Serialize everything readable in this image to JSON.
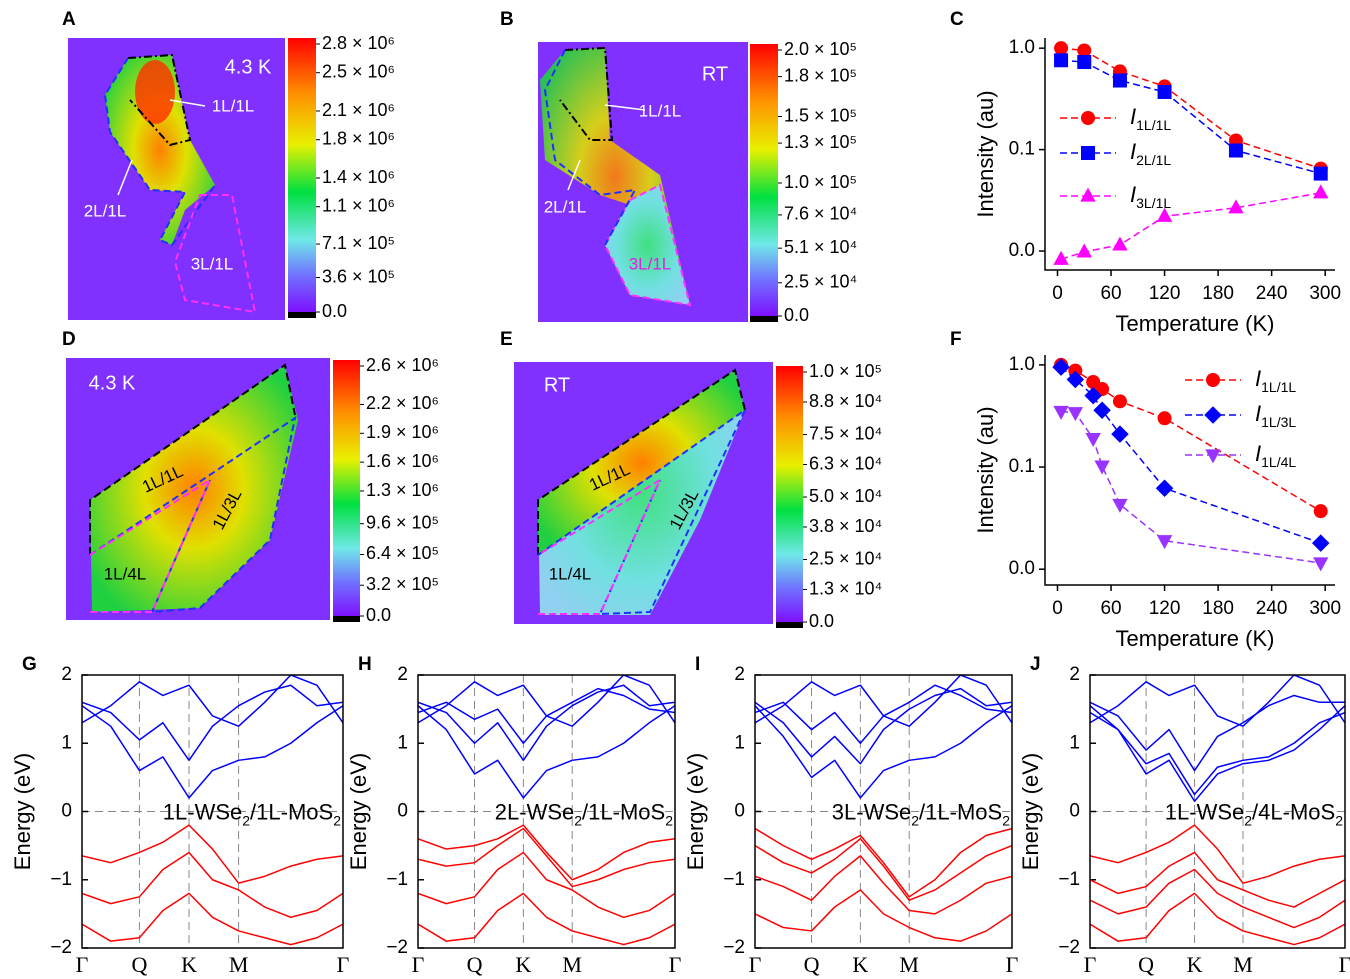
{
  "chart_data": [
    {
      "type": "map",
      "panel": "A",
      "annotations": [
        "4.3 K",
        "1L/1L",
        "2L/1L",
        "3L/1L"
      ],
      "clim": [
        0,
        2800000
      ],
      "cticks": [
        {
          "value": 0,
          "label": "0.0"
        },
        {
          "value": 360000,
          "label": "3.6 × 10⁵"
        },
        {
          "value": 710000,
          "label": "7.1 × 10⁵"
        },
        {
          "value": 1100000,
          "label": "1.1 × 10⁶"
        },
        {
          "value": 1400000,
          "label": "1.4 × 10⁶"
        },
        {
          "value": 1800000,
          "label": "1.8 × 10⁶"
        },
        {
          "value": 2100000,
          "label": "2.1 × 10⁶"
        },
        {
          "value": 2500000,
          "label": "2.5 × 10⁶"
        },
        {
          "value": 2800000,
          "label": "2.8 × 10⁶"
        }
      ]
    },
    {
      "type": "map",
      "panel": "B",
      "annotations": [
        "RT",
        "1L/1L",
        "2L/1L",
        "3L/1L"
      ],
      "clim": [
        0,
        200000
      ],
      "cticks": [
        {
          "value": 0,
          "label": "0.0"
        },
        {
          "value": 25000,
          "label": "2.5 × 10⁴"
        },
        {
          "value": 51000,
          "label": "5.1 × 10⁴"
        },
        {
          "value": 76000,
          "label": "7.6 × 10⁴"
        },
        {
          "value": 100000,
          "label": "1.0 × 10⁵"
        },
        {
          "value": 130000,
          "label": "1.3 × 10⁵"
        },
        {
          "value": 150000,
          "label": "1.5 × 10⁵"
        },
        {
          "value": 180000,
          "label": "1.8 × 10⁵"
        },
        {
          "value": 200000,
          "label": "2.0 × 10⁵"
        }
      ]
    },
    {
      "type": "line",
      "panel": "C",
      "ylabel": "Intensity (au)",
      "xlabel": "Temperature (K)",
      "log_y": true,
      "legend": "left",
      "x": [
        4,
        30,
        70,
        120,
        200,
        295
      ],
      "xlim": [
        -14,
        311
      ],
      "xticks": [
        0,
        60,
        120,
        180,
        240,
        300
      ],
      "ylim": [
        0.0065,
        1.26
      ],
      "yticks": [
        {
          "value": 1,
          "label": "1.0"
        },
        {
          "value": 0.1,
          "label": "0.1"
        },
        {
          "value": 0.01,
          "label": "0.0"
        }
      ],
      "series": [
        {
          "name": "I1L/1L",
          "color": "#ff0000",
          "marker": "circle",
          "values": [
            1.0,
            0.95,
            0.59,
            0.42,
            0.123,
            0.065
          ]
        },
        {
          "name": "I2L/1L",
          "color": "#0000ff",
          "marker": "square",
          "values": [
            0.76,
            0.73,
            0.48,
            0.37,
            0.098,
            0.058
          ]
        },
        {
          "name": "I3L/1L",
          "color": "#ff00ff",
          "marker": "triangle-up",
          "values": [
            0.0083,
            0.0098,
            0.0115,
            0.022,
            0.0267,
            0.0375
          ]
        }
      ]
    },
    {
      "type": "map",
      "panel": "D",
      "annotations": [
        "4.3 K",
        "1L/1L",
        "1L/3L",
        "1L/4L"
      ],
      "clim": [
        0,
        2600000
      ],
      "cticks": [
        {
          "value": 0,
          "label": "0.0"
        },
        {
          "value": 320000,
          "label": "3.2 × 10⁵"
        },
        {
          "value": 640000,
          "label": "6.4 × 10⁵"
        },
        {
          "value": 960000,
          "label": "9.6 × 10⁵"
        },
        {
          "value": 1300000,
          "label": "1.3 × 10⁶"
        },
        {
          "value": 1600000,
          "label": "1.6 × 10⁶"
        },
        {
          "value": 1900000,
          "label": "1.9 × 10⁶"
        },
        {
          "value": 2200000,
          "label": "2.2 × 10⁶"
        },
        {
          "value": 2600000,
          "label": "2.6 × 10⁶"
        }
      ]
    },
    {
      "type": "map",
      "panel": "E",
      "annotations": [
        "RT",
        "1L/1L",
        "1L/3L",
        "1L/4L"
      ],
      "clim": [
        0,
        100000
      ],
      "cticks": [
        {
          "value": 0,
          "label": "0.0"
        },
        {
          "value": 13000,
          "label": "1.3 × 10⁴"
        },
        {
          "value": 25000,
          "label": "2.5 × 10⁴"
        },
        {
          "value": 38000,
          "label": "3.8 × 10⁴"
        },
        {
          "value": 50000,
          "label": "5.0 × 10⁴"
        },
        {
          "value": 63000,
          "label": "6.3 × 10⁴"
        },
        {
          "value": 75000,
          "label": "7.5 × 10⁴"
        },
        {
          "value": 88000,
          "label": "8.8 × 10⁴"
        },
        {
          "value": 100000,
          "label": "1.0 × 10⁵"
        }
      ]
    },
    {
      "type": "line",
      "panel": "F",
      "ylabel": "Intensity (au)",
      "xlabel": "Temperature (K)",
      "log_y": true,
      "legend": "right",
      "x": [
        4,
        20,
        40,
        50,
        70,
        120,
        295
      ],
      "xlim": [
        -14,
        311
      ],
      "xticks": [
        0,
        60,
        120,
        180,
        240,
        300
      ],
      "ylim": [
        0.007,
        1.25
      ],
      "yticks": [
        {
          "value": 1,
          "label": "1.0"
        },
        {
          "value": 0.1,
          "label": "0.1"
        },
        {
          "value": 0.01,
          "label": "0.0"
        }
      ],
      "series": [
        {
          "name": "I1L/1L",
          "color": "#ff0000",
          "marker": "circle",
          "values": [
            1.0,
            0.88,
            0.68,
            0.58,
            0.44,
            0.3,
            0.037
          ]
        },
        {
          "name": "I1L/3L",
          "color": "#0000ff",
          "marker": "diamond",
          "values": [
            0.95,
            0.72,
            0.5,
            0.36,
            0.21,
            0.062,
            0.018
          ]
        },
        {
          "name": "I1L/4L",
          "color": "#9933ff",
          "marker": "triangle-down",
          "values": [
            0.35,
            0.34,
            0.19,
            0.102,
            0.043,
            0.019,
            0.0115
          ]
        }
      ]
    },
    {
      "type": "band",
      "panel": "G",
      "ylabel": "Energy (eV)",
      "annotation": "1L-WSe2/1L-MoS2",
      "x": [
        0,
        0.11,
        0.22,
        0.31,
        0.41,
        0.5,
        0.6,
        0.7,
        0.8,
        0.9,
        1
      ],
      "xlim": [
        0,
        1
      ],
      "xticks": [
        {
          "value": 0,
          "label": "Γ"
        },
        {
          "value": 0.22,
          "label": "Q"
        },
        {
          "value": 0.41,
          "label": "K"
        },
        {
          "value": 0.6,
          "label": "M"
        },
        {
          "value": 1,
          "label": "Γ"
        }
      ],
      "ylim": [
        -2,
        2
      ],
      "yticks": [
        {
          "value": -2,
          "label": "−2"
        },
        {
          "value": -1,
          "label": "−1"
        },
        0,
        1,
        2
      ],
      "series": [
        {
          "color": "#0000ff",
          "values": [
            1.55,
            1.25,
            0.6,
            0.8,
            0.2,
            0.6,
            0.75,
            0.8,
            1.0,
            1.3,
            1.55
          ]
        },
        {
          "color": "#0000ff",
          "values": [
            1.6,
            1.45,
            1.05,
            1.3,
            0.75,
            1.25,
            1.55,
            1.75,
            1.85,
            1.55,
            1.6
          ]
        },
        {
          "color": "#0000ff",
          "values": [
            1.3,
            1.55,
            1.9,
            1.7,
            1.85,
            1.4,
            1.25,
            1.6,
            2.0,
            1.85,
            1.3
          ]
        },
        {
          "color": "#ff0000",
          "values": [
            -0.65,
            -0.75,
            -0.6,
            -0.45,
            -0.2,
            -0.55,
            -1.05,
            -0.95,
            -0.8,
            -0.7,
            -0.65
          ]
        },
        {
          "color": "#ff0000",
          "values": [
            -1.2,
            -1.35,
            -1.25,
            -0.85,
            -0.6,
            -1.0,
            -1.15,
            -1.4,
            -1.55,
            -1.45,
            -1.2
          ]
        },
        {
          "color": "#ff0000",
          "values": [
            -1.65,
            -1.9,
            -1.85,
            -1.45,
            -1.2,
            -1.55,
            -1.75,
            -1.85,
            -1.95,
            -1.85,
            -1.65
          ]
        }
      ]
    },
    {
      "type": "band",
      "panel": "H",
      "ylabel": "Energy (eV)",
      "annotation": "2L-WSe2/1L-MoS2",
      "x": [
        0,
        0.11,
        0.22,
        0.31,
        0.41,
        0.5,
        0.6,
        0.7,
        0.8,
        0.9,
        1
      ],
      "xlim": [
        0,
        1
      ],
      "xticks": [
        {
          "value": 0,
          "label": "Γ"
        },
        {
          "value": 0.22,
          "label": "Q"
        },
        {
          "value": 0.41,
          "label": "K"
        },
        {
          "value": 0.6,
          "label": "M"
        },
        {
          "value": 1,
          "label": "Γ"
        }
      ],
      "ylim": [
        -2,
        2
      ],
      "yticks": [
        {
          "value": -2,
          "label": "−2"
        },
        {
          "value": -1,
          "label": "−1"
        },
        0,
        1,
        2
      ],
      "series": [
        {
          "color": "#0000ff",
          "values": [
            1.55,
            1.2,
            0.55,
            0.75,
            0.2,
            0.6,
            0.75,
            0.8,
            1.0,
            1.3,
            1.55
          ]
        },
        {
          "color": "#0000ff",
          "values": [
            1.6,
            1.45,
            1.0,
            1.3,
            0.75,
            1.25,
            1.55,
            1.75,
            1.85,
            1.55,
            1.6
          ]
        },
        {
          "color": "#0000ff",
          "values": [
            1.45,
            1.6,
            1.35,
            1.5,
            1.0,
            1.4,
            1.6,
            1.8,
            1.7,
            1.5,
            1.45
          ]
        },
        {
          "color": "#0000ff",
          "values": [
            1.3,
            1.55,
            1.9,
            1.7,
            1.85,
            1.4,
            1.25,
            1.6,
            2.0,
            1.85,
            1.3
          ]
        },
        {
          "color": "#ff0000",
          "values": [
            -0.4,
            -0.55,
            -0.5,
            -0.4,
            -0.2,
            -0.6,
            -1.0,
            -0.85,
            -0.6,
            -0.45,
            -0.4
          ]
        },
        {
          "color": "#ff0000",
          "values": [
            -0.7,
            -0.8,
            -0.75,
            -0.5,
            -0.25,
            -0.65,
            -1.1,
            -1.0,
            -0.85,
            -0.75,
            -0.7
          ]
        },
        {
          "color": "#ff0000",
          "values": [
            -1.2,
            -1.35,
            -1.25,
            -0.85,
            -0.6,
            -1.0,
            -1.15,
            -1.4,
            -1.55,
            -1.45,
            -1.2
          ]
        },
        {
          "color": "#ff0000",
          "values": [
            -1.65,
            -1.9,
            -1.85,
            -1.45,
            -1.2,
            -1.55,
            -1.75,
            -1.85,
            -1.95,
            -1.85,
            -1.65
          ]
        }
      ]
    },
    {
      "type": "band",
      "panel": "I",
      "ylabel": "Energy (eV)",
      "annotation": "3L-WSe2/1L-MoS2",
      "x": [
        0,
        0.11,
        0.22,
        0.31,
        0.41,
        0.5,
        0.6,
        0.7,
        0.8,
        0.9,
        1
      ],
      "xlim": [
        0,
        1
      ],
      "xticks": [
        {
          "value": 0,
          "label": "Γ"
        },
        {
          "value": 0.22,
          "label": "Q"
        },
        {
          "value": 0.41,
          "label": "K"
        },
        {
          "value": 0.6,
          "label": "M"
        },
        {
          "value": 1,
          "label": "Γ"
        }
      ],
      "ylim": [
        -2,
        2
      ],
      "yticks": [
        {
          "value": -2,
          "label": "−2"
        },
        {
          "value": -1,
          "label": "−1"
        },
        0,
        1,
        2
      ],
      "series": [
        {
          "color": "#0000ff",
          "values": [
            1.55,
            1.1,
            0.5,
            0.75,
            0.2,
            0.6,
            0.75,
            0.8,
            1.0,
            1.3,
            1.55
          ]
        },
        {
          "color": "#0000ff",
          "values": [
            1.6,
            1.3,
            0.8,
            1.1,
            0.7,
            1.2,
            1.5,
            1.7,
            1.8,
            1.55,
            1.6
          ]
        },
        {
          "color": "#0000ff",
          "values": [
            1.45,
            1.6,
            1.2,
            1.45,
            1.0,
            1.4,
            1.6,
            1.85,
            1.7,
            1.5,
            1.45
          ]
        },
        {
          "color": "#0000ff",
          "values": [
            1.3,
            1.55,
            1.9,
            1.7,
            1.85,
            1.4,
            1.25,
            1.6,
            2.0,
            1.85,
            1.3
          ]
        },
        {
          "color": "#ff0000",
          "values": [
            -0.25,
            -0.5,
            -0.7,
            -0.55,
            -0.35,
            -0.75,
            -1.25,
            -1.0,
            -0.6,
            -0.35,
            -0.25
          ]
        },
        {
          "color": "#ff0000",
          "values": [
            -0.5,
            -0.75,
            -0.9,
            -0.7,
            -0.4,
            -0.8,
            -1.3,
            -1.15,
            -0.9,
            -0.65,
            -0.5
          ]
        },
        {
          "color": "#ff0000",
          "values": [
            -0.95,
            -1.1,
            -1.3,
            -0.95,
            -0.65,
            -1.05,
            -1.45,
            -1.5,
            -1.3,
            -1.05,
            -0.95
          ]
        },
        {
          "color": "#ff0000",
          "values": [
            -1.5,
            -1.7,
            -1.75,
            -1.4,
            -1.15,
            -1.5,
            -1.7,
            -1.85,
            -1.9,
            -1.75,
            -1.5
          ]
        }
      ]
    },
    {
      "type": "band",
      "panel": "J",
      "ylabel": "Energy (eV)",
      "annotation": "1L-WSe2/4L-MoS2",
      "x": [
        0,
        0.11,
        0.22,
        0.31,
        0.41,
        0.5,
        0.6,
        0.7,
        0.8,
        0.9,
        1
      ],
      "xlim": [
        0,
        1
      ],
      "xticks": [
        {
          "value": 0,
          "label": "Γ"
        },
        {
          "value": 0.22,
          "label": "Q"
        },
        {
          "value": 0.41,
          "label": "K"
        },
        {
          "value": 0.6,
          "label": "M"
        },
        {
          "value": 1,
          "label": "Γ"
        }
      ],
      "ylim": [
        -2,
        2
      ],
      "yticks": [
        {
          "value": -2,
          "label": "−2"
        },
        {
          "value": -1,
          "label": "−1"
        },
        0,
        1,
        2
      ],
      "series": [
        {
          "color": "#0000ff",
          "values": [
            1.55,
            1.2,
            0.55,
            0.75,
            0.15,
            0.55,
            0.7,
            0.75,
            0.9,
            1.2,
            1.55
          ]
        },
        {
          "color": "#0000ff",
          "values": [
            1.45,
            1.2,
            0.7,
            0.85,
            0.25,
            0.65,
            0.75,
            0.8,
            1.0,
            1.3,
            1.45
          ]
        },
        {
          "color": "#0000ff",
          "values": [
            1.6,
            1.4,
            0.9,
            1.2,
            0.6,
            1.1,
            1.3,
            1.55,
            1.7,
            1.6,
            1.6
          ]
        },
        {
          "color": "#0000ff",
          "values": [
            1.3,
            1.55,
            1.9,
            1.7,
            1.85,
            1.4,
            1.25,
            1.6,
            2.0,
            1.85,
            1.3
          ]
        },
        {
          "color": "#ff0000",
          "values": [
            -0.65,
            -0.75,
            -0.6,
            -0.45,
            -0.2,
            -0.55,
            -1.05,
            -0.95,
            -0.8,
            -0.7,
            -0.65
          ]
        },
        {
          "color": "#ff0000",
          "values": [
            -1.0,
            -1.2,
            -1.1,
            -0.8,
            -0.6,
            -1.0,
            -1.15,
            -1.3,
            -1.4,
            -1.2,
            -1.0
          ]
        },
        {
          "color": "#ff0000",
          "values": [
            -1.3,
            -1.5,
            -1.4,
            -1.05,
            -0.85,
            -1.2,
            -1.4,
            -1.55,
            -1.7,
            -1.55,
            -1.3
          ]
        },
        {
          "color": "#ff0000",
          "values": [
            -1.65,
            -1.9,
            -1.85,
            -1.45,
            -1.2,
            -1.55,
            -1.75,
            -1.85,
            -1.95,
            -1.85,
            -1.65
          ]
        }
      ]
    }
  ]
}
